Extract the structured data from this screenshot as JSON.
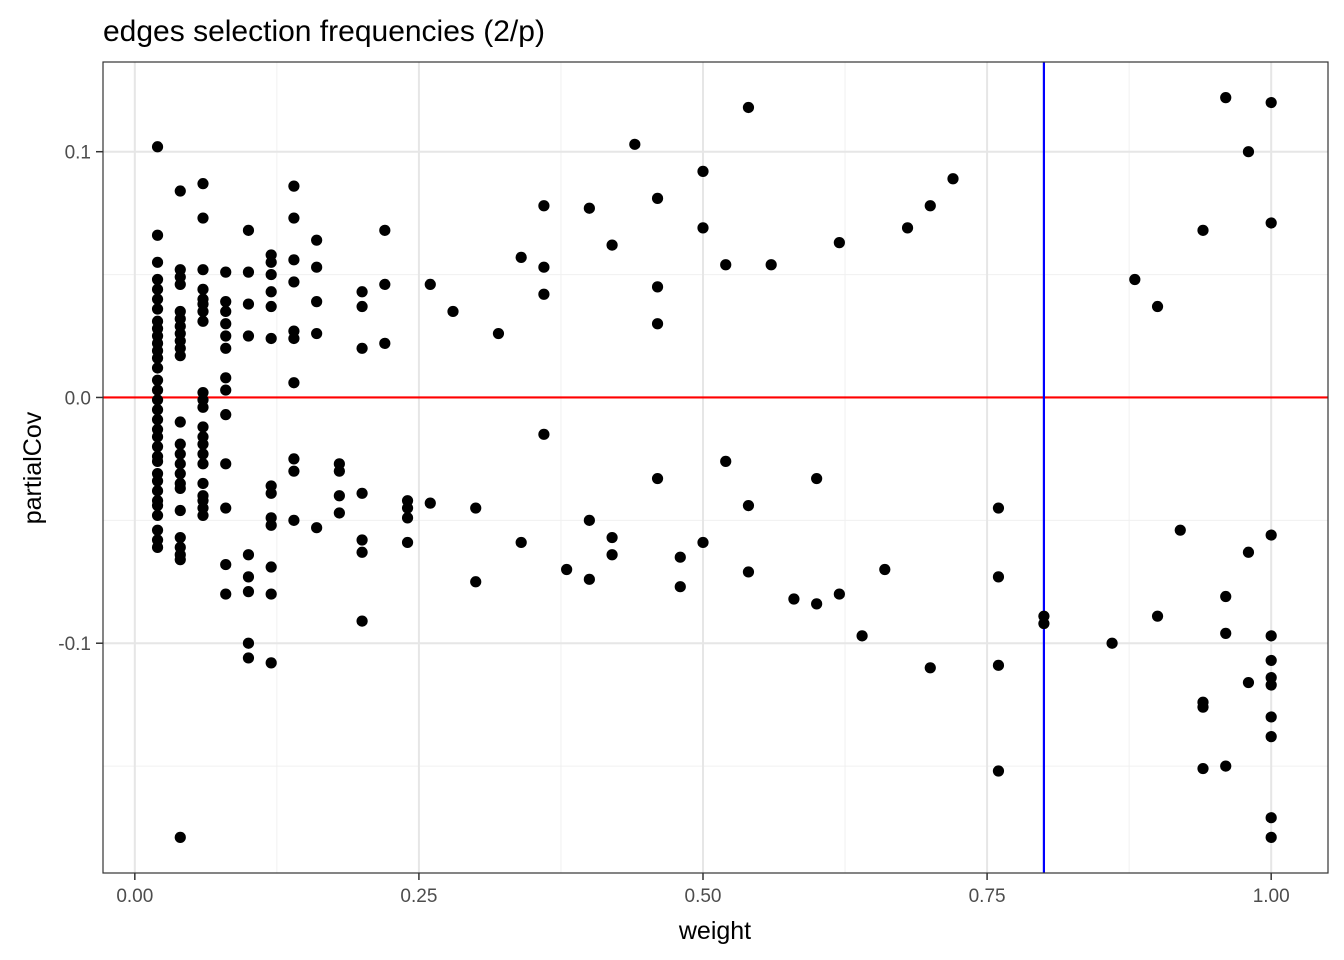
{
  "chart_data": {
    "type": "scatter",
    "title": "edges selection frequencies (2/p)",
    "xlabel": "weight",
    "ylabel": "partialCov",
    "xlim": [
      -0.028,
      1.05
    ],
    "ylim": [
      -0.1935,
      0.1365
    ],
    "x_ticks": [
      0.0,
      0.25,
      0.5,
      0.75,
      1.0
    ],
    "x_tick_labels": [
      "0.00",
      "0.25",
      "0.50",
      "0.75",
      "1.00"
    ],
    "y_ticks": [
      -0.1,
      0.0,
      0.1
    ],
    "y_tick_labels": [
      "-0.1",
      "0.0",
      "0.1"
    ],
    "grid": true,
    "point_color": "#000000",
    "hline": {
      "y": 0.0,
      "color": "#ff0000"
    },
    "vline": {
      "x": 0.8,
      "color": "#0000ff"
    },
    "points": [
      [
        0.02,
        0.102
      ],
      [
        0.02,
        0.066
      ],
      [
        0.02,
        0.055
      ],
      [
        0.02,
        0.048
      ],
      [
        0.02,
        0.044
      ],
      [
        0.02,
        0.04
      ],
      [
        0.02,
        0.036
      ],
      [
        0.02,
        0.031
      ],
      [
        0.02,
        0.028
      ],
      [
        0.02,
        0.025
      ],
      [
        0.02,
        0.022
      ],
      [
        0.02,
        0.019
      ],
      [
        0.02,
        0.016
      ],
      [
        0.02,
        0.012
      ],
      [
        0.02,
        0.007
      ],
      [
        0.02,
        0.003
      ],
      [
        0.02,
        -0.001
      ],
      [
        0.02,
        -0.005
      ],
      [
        0.02,
        -0.009
      ],
      [
        0.02,
        -0.013
      ],
      [
        0.02,
        -0.016
      ],
      [
        0.02,
        -0.02
      ],
      [
        0.02,
        -0.024
      ],
      [
        0.02,
        -0.026
      ],
      [
        0.02,
        -0.031
      ],
      [
        0.02,
        -0.034
      ],
      [
        0.02,
        -0.038
      ],
      [
        0.02,
        -0.042
      ],
      [
        0.02,
        -0.044
      ],
      [
        0.02,
        -0.048
      ],
      [
        0.02,
        -0.054
      ],
      [
        0.02,
        -0.058
      ],
      [
        0.02,
        -0.061
      ],
      [
        0.04,
        0.084
      ],
      [
        0.04,
        0.052
      ],
      [
        0.04,
        0.049
      ],
      [
        0.04,
        0.046
      ],
      [
        0.04,
        0.035
      ],
      [
        0.04,
        0.032
      ],
      [
        0.04,
        0.029
      ],
      [
        0.04,
        0.026
      ],
      [
        0.04,
        0.023
      ],
      [
        0.04,
        0.02
      ],
      [
        0.04,
        0.017
      ],
      [
        0.04,
        -0.01
      ],
      [
        0.04,
        -0.019
      ],
      [
        0.04,
        -0.023
      ],
      [
        0.04,
        -0.027
      ],
      [
        0.04,
        -0.031
      ],
      [
        0.04,
        -0.035
      ],
      [
        0.04,
        -0.037
      ],
      [
        0.04,
        -0.046
      ],
      [
        0.04,
        -0.057
      ],
      [
        0.04,
        -0.061
      ],
      [
        0.04,
        -0.064
      ],
      [
        0.04,
        -0.066
      ],
      [
        0.04,
        -0.179
      ],
      [
        0.06,
        0.087
      ],
      [
        0.06,
        0.073
      ],
      [
        0.06,
        0.052
      ],
      [
        0.06,
        0.044
      ],
      [
        0.06,
        0.04
      ],
      [
        0.06,
        0.038
      ],
      [
        0.06,
        0.035
      ],
      [
        0.06,
        0.031
      ],
      [
        0.06,
        0.002
      ],
      [
        0.06,
        -0.001
      ],
      [
        0.06,
        -0.004
      ],
      [
        0.06,
        -0.012
      ],
      [
        0.06,
        -0.016
      ],
      [
        0.06,
        -0.019
      ],
      [
        0.06,
        -0.023
      ],
      [
        0.06,
        -0.027
      ],
      [
        0.06,
        -0.035
      ],
      [
        0.06,
        -0.04
      ],
      [
        0.06,
        -0.042
      ],
      [
        0.06,
        -0.045
      ],
      [
        0.06,
        -0.048
      ],
      [
        0.08,
        0.051
      ],
      [
        0.08,
        0.039
      ],
      [
        0.08,
        0.035
      ],
      [
        0.08,
        0.03
      ],
      [
        0.08,
        0.025
      ],
      [
        0.08,
        0.02
      ],
      [
        0.08,
        0.008
      ],
      [
        0.08,
        0.003
      ],
      [
        0.08,
        -0.007
      ],
      [
        0.08,
        -0.027
      ],
      [
        0.08,
        -0.045
      ],
      [
        0.08,
        -0.068
      ],
      [
        0.08,
        -0.08
      ],
      [
        0.1,
        0.068
      ],
      [
        0.1,
        0.051
      ],
      [
        0.1,
        0.038
      ],
      [
        0.1,
        0.025
      ],
      [
        0.1,
        -0.064
      ],
      [
        0.1,
        -0.073
      ],
      [
        0.1,
        -0.079
      ],
      [
        0.1,
        -0.1
      ],
      [
        0.1,
        -0.106
      ],
      [
        0.12,
        0.058
      ],
      [
        0.12,
        0.055
      ],
      [
        0.12,
        0.05
      ],
      [
        0.12,
        0.043
      ],
      [
        0.12,
        0.037
      ],
      [
        0.12,
        0.024
      ],
      [
        0.12,
        -0.036
      ],
      [
        0.12,
        -0.039
      ],
      [
        0.12,
        -0.049
      ],
      [
        0.12,
        -0.052
      ],
      [
        0.12,
        -0.069
      ],
      [
        0.12,
        -0.08
      ],
      [
        0.12,
        -0.108
      ],
      [
        0.14,
        0.086
      ],
      [
        0.14,
        0.073
      ],
      [
        0.14,
        0.056
      ],
      [
        0.14,
        0.047
      ],
      [
        0.14,
        0.027
      ],
      [
        0.14,
        0.024
      ],
      [
        0.14,
        0.006
      ],
      [
        0.14,
        -0.025
      ],
      [
        0.14,
        -0.03
      ],
      [
        0.14,
        -0.05
      ],
      [
        0.16,
        0.064
      ],
      [
        0.16,
        0.053
      ],
      [
        0.16,
        0.039
      ],
      [
        0.16,
        0.026
      ],
      [
        0.16,
        -0.053
      ],
      [
        0.18,
        -0.027
      ],
      [
        0.18,
        -0.03
      ],
      [
        0.18,
        -0.04
      ],
      [
        0.18,
        -0.047
      ],
      [
        0.2,
        0.043
      ],
      [
        0.2,
        0.037
      ],
      [
        0.2,
        0.02
      ],
      [
        0.2,
        -0.039
      ],
      [
        0.2,
        -0.058
      ],
      [
        0.2,
        -0.063
      ],
      [
        0.2,
        -0.091
      ],
      [
        0.22,
        0.068
      ],
      [
        0.22,
        0.046
      ],
      [
        0.22,
        0.022
      ],
      [
        0.24,
        -0.042
      ],
      [
        0.24,
        -0.045
      ],
      [
        0.24,
        -0.049
      ],
      [
        0.24,
        -0.059
      ],
      [
        0.26,
        0.046
      ],
      [
        0.26,
        -0.043
      ],
      [
        0.28,
        0.035
      ],
      [
        0.3,
        -0.045
      ],
      [
        0.3,
        -0.075
      ],
      [
        0.32,
        0.026
      ],
      [
        0.34,
        0.057
      ],
      [
        0.34,
        -0.059
      ],
      [
        0.36,
        0.078
      ],
      [
        0.36,
        0.053
      ],
      [
        0.36,
        0.042
      ],
      [
        0.36,
        -0.015
      ],
      [
        0.38,
        -0.07
      ],
      [
        0.4,
        0.077
      ],
      [
        0.4,
        -0.05
      ],
      [
        0.4,
        -0.074
      ],
      [
        0.42,
        0.062
      ],
      [
        0.42,
        -0.057
      ],
      [
        0.42,
        -0.064
      ],
      [
        0.44,
        0.103
      ],
      [
        0.46,
        0.081
      ],
      [
        0.46,
        0.045
      ],
      [
        0.46,
        0.03
      ],
      [
        0.46,
        -0.033
      ],
      [
        0.48,
        -0.065
      ],
      [
        0.48,
        -0.077
      ],
      [
        0.5,
        0.092
      ],
      [
        0.5,
        0.069
      ],
      [
        0.5,
        -0.059
      ],
      [
        0.52,
        0.054
      ],
      [
        0.52,
        -0.026
      ],
      [
        0.54,
        0.118
      ],
      [
        0.54,
        -0.044
      ],
      [
        0.54,
        -0.071
      ],
      [
        0.56,
        0.054
      ],
      [
        0.58,
        -0.082
      ],
      [
        0.6,
        -0.033
      ],
      [
        0.6,
        -0.084
      ],
      [
        0.62,
        0.063
      ],
      [
        0.62,
        -0.08
      ],
      [
        0.64,
        -0.097
      ],
      [
        0.66,
        -0.07
      ],
      [
        0.68,
        0.069
      ],
      [
        0.7,
        0.078
      ],
      [
        0.7,
        -0.11
      ],
      [
        0.72,
        0.089
      ],
      [
        0.76,
        -0.045
      ],
      [
        0.76,
        -0.073
      ],
      [
        0.76,
        -0.109
      ],
      [
        0.76,
        -0.152
      ],
      [
        0.8,
        -0.089
      ],
      [
        0.8,
        -0.092
      ],
      [
        0.86,
        -0.1
      ],
      [
        0.88,
        0.048
      ],
      [
        0.9,
        0.037
      ],
      [
        0.9,
        -0.089
      ],
      [
        0.92,
        -0.054
      ],
      [
        0.94,
        0.068
      ],
      [
        0.94,
        -0.124
      ],
      [
        0.94,
        -0.126
      ],
      [
        0.94,
        -0.151
      ],
      [
        0.96,
        0.122
      ],
      [
        0.96,
        -0.081
      ],
      [
        0.96,
        -0.096
      ],
      [
        0.96,
        -0.15
      ],
      [
        0.98,
        0.1
      ],
      [
        0.98,
        -0.063
      ],
      [
        0.98,
        -0.116
      ],
      [
        1.0,
        0.12
      ],
      [
        1.0,
        0.071
      ],
      [
        1.0,
        -0.056
      ],
      [
        1.0,
        -0.097
      ],
      [
        1.0,
        -0.107
      ],
      [
        1.0,
        -0.114
      ],
      [
        1.0,
        -0.117
      ],
      [
        1.0,
        -0.13
      ],
      [
        1.0,
        -0.138
      ],
      [
        1.0,
        -0.171
      ],
      [
        1.0,
        -0.179
      ]
    ]
  }
}
